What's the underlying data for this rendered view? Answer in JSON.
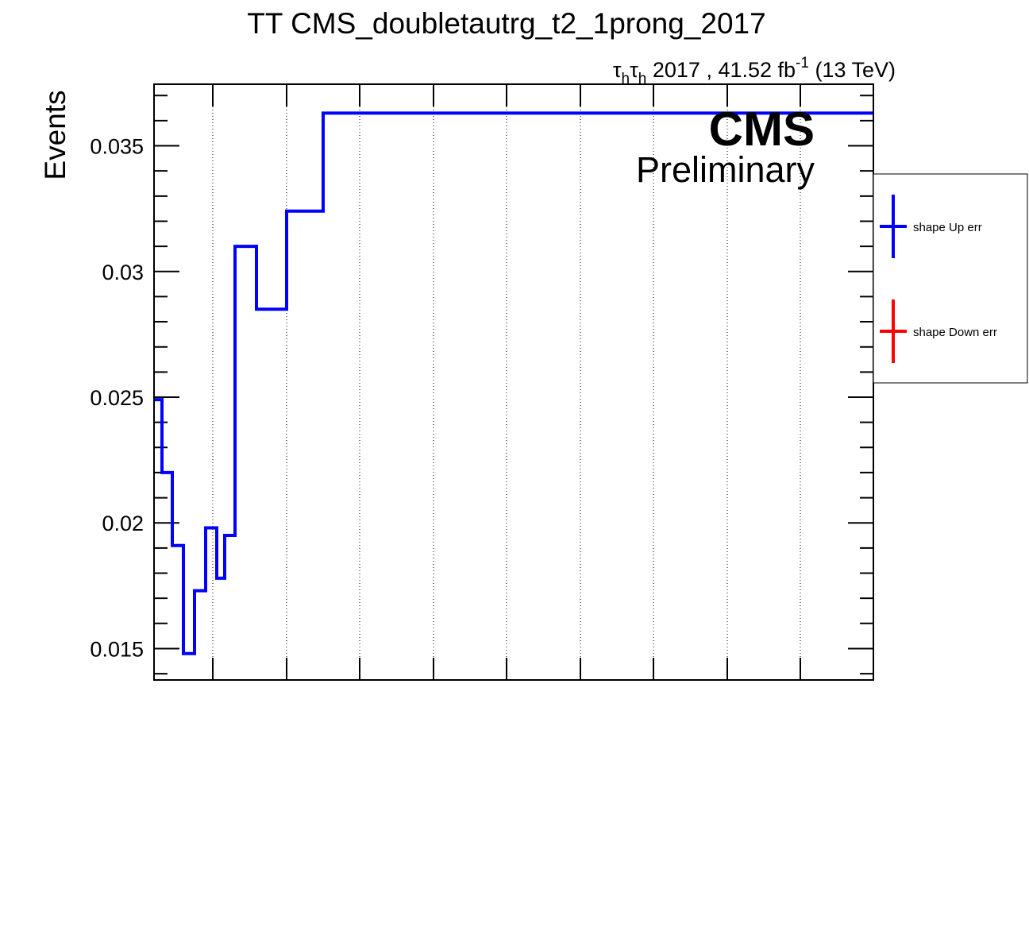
{
  "chart_data": {
    "type": "line",
    "drawstyle": "step",
    "title": "TT CMS_doubletautrg_t2_1prong_2017",
    "lumi_label": {
      "tau1": "τ",
      "sub1": "h",
      "tau2": "τ",
      "sub2": "h",
      "main": " 2017 , 41.52 fb",
      "exp": "-1",
      "energy": " (13 TeV)"
    },
    "cms_label": "CMS",
    "preliminary_label": "Preliminary",
    "xlabel": "",
    "ylabel": "Events",
    "ylim": [
      0.01375,
      0.03745
    ],
    "yticks": [
      0.015,
      0.02,
      0.025,
      0.03,
      0.035
    ],
    "ytick_labels": [
      "0.015",
      "0.02",
      "0.025",
      "0.03",
      "0.035"
    ],
    "grid_x": true,
    "grid_y": false,
    "series": [
      {
        "name": "shape Up err",
        "color": "#0000ff",
        "values": [
          0.0249,
          0.022,
          0.0191,
          0.0148,
          0.0173,
          0.0198,
          0.0178,
          0.0195,
          0.031,
          0.0285,
          0.0324,
          0.0363
        ]
      }
    ],
    "legend": {
      "placement": "right-outside",
      "entries": [
        {
          "label": "shape Up err",
          "color": "#0000ff"
        },
        {
          "label": "shape Down err",
          "color": "#ff0000"
        }
      ]
    }
  }
}
